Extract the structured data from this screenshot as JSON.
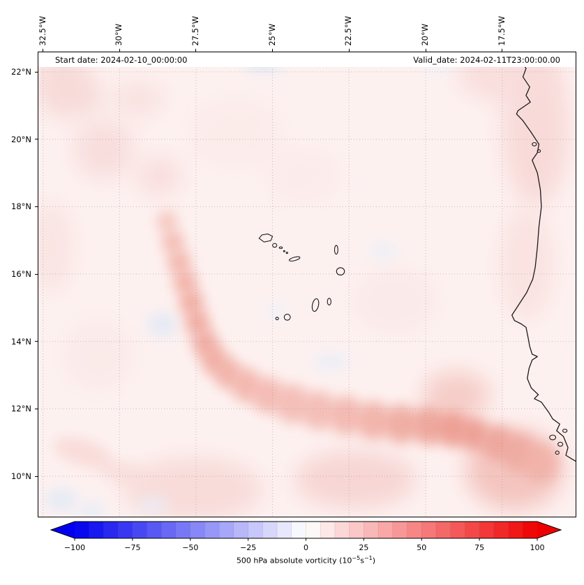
{
  "chart_data": {
    "type": "heatmap",
    "title_left": "Start date: 2024-02-10_00:00:00",
    "title_right": "Valid_date: 2024-02-11T23:00:00.00",
    "geo": {
      "lon_min": -32.65,
      "lon_max": -15.1,
      "lat_min": 8.8,
      "lat_max": 22.58
    },
    "x_axis": {
      "tick_labels": [
        "32.5°W",
        "30°W",
        "27.5°W",
        "25°W",
        "22.5°W",
        "20°W",
        "17.5°W"
      ],
      "tick_lons": [
        -32.5,
        -30,
        -27.5,
        -25,
        -22.5,
        -20,
        -17.5
      ]
    },
    "y_axis": {
      "tick_labels": [
        "22°N",
        "20°N",
        "18°N",
        "16°N",
        "14°N",
        "12°N",
        "10°N"
      ],
      "tick_lats": [
        22,
        20,
        18,
        16,
        14,
        12,
        10
      ]
    },
    "grid": {
      "on": true,
      "style": "dotted",
      "color": "#999999"
    },
    "colorbar": {
      "vmin": -100,
      "vmax": 100,
      "levels": 32,
      "extend": "both",
      "cmap": "bwr",
      "colors": {
        "low": "#0000ee",
        "mid": "#ffffff",
        "high": "#ee0000"
      },
      "tick_values": [
        -100,
        -75,
        -50,
        -25,
        0,
        25,
        50,
        75,
        100
      ],
      "tick_labels": [
        "−100",
        "−75",
        "−50",
        "−25",
        "0",
        "25",
        "50",
        "75",
        "100"
      ],
      "label": {
        "prefix": "500 hPa absolute vorticity (10",
        "sup1": "−5",
        "mid": "s",
        "sup2": "−1",
        "suffix": ")"
      }
    },
    "field": {
      "units": "1e-5 s^-1",
      "base_value": 5,
      "base_color": "#fdf1f0",
      "description": "Weak positive vorticity (pale red) over most of the domain; an elongated band of enhanced vorticity (25-45) arcs from about 28.5W,17.5N southward to 27W,13.5N then eastward along about 11.5N toward the African coast, with a maximum near 19W,11.4N; scattered weak negative (pale blue) patches.",
      "blobs": [
        {
          "x": -31.9,
          "y": 21.9,
          "rx": 0.85,
          "ry": 0.5,
          "c": "#f6d6d4",
          "o": 0.85,
          "b": "b-l"
        },
        {
          "x": -31.6,
          "y": 21.3,
          "rx": 1.1,
          "ry": 0.7,
          "c": "#f6d8d6",
          "o": 0.85,
          "b": "b-l"
        },
        {
          "x": -30.5,
          "y": 19.7,
          "rx": 1.0,
          "ry": 0.9,
          "c": "#f7dbd9",
          "o": 0.85,
          "b": "b-l"
        },
        {
          "x": -28.7,
          "y": 18.9,
          "rx": 0.75,
          "ry": 0.6,
          "c": "#f7dad8",
          "o": 0.8,
          "b": "b-l"
        },
        {
          "x": -32.2,
          "y": 16.8,
          "rx": 0.7,
          "ry": 1.4,
          "c": "#f9e1df",
          "o": 0.8,
          "b": "b-l"
        },
        {
          "x": -29.4,
          "y": 21.2,
          "rx": 0.9,
          "ry": 0.55,
          "c": "#f8dedc",
          "o": 0.8,
          "b": "b-l"
        },
        {
          "x": -26.2,
          "y": 20.2,
          "rx": 1.6,
          "ry": 1.1,
          "c": "#fbe9e8",
          "o": 0.75,
          "b": "b-l"
        },
        {
          "x": -24.0,
          "y": 18.9,
          "rx": 1.3,
          "ry": 0.9,
          "c": "#fbe9e8",
          "o": 0.7,
          "b": "b-l"
        },
        {
          "x": -16.4,
          "y": 20.3,
          "rx": 1.1,
          "ry": 2.3,
          "c": "#f7d8d6",
          "o": 0.9,
          "b": "b-l"
        },
        {
          "x": -17.4,
          "y": 21.9,
          "rx": 1.6,
          "ry": 0.8,
          "c": "#f8dcda",
          "o": 0.85,
          "b": "b-l"
        },
        {
          "x": -16.7,
          "y": 16.3,
          "rx": 0.9,
          "ry": 1.7,
          "c": "#f9e0de",
          "o": 0.85,
          "b": "b-l"
        },
        {
          "x": -21.0,
          "y": 15.2,
          "rx": 1.4,
          "ry": 1.0,
          "c": "#fae7e5",
          "o": 0.7,
          "b": "b-l"
        },
        {
          "x": -19.0,
          "y": 12.4,
          "rx": 1.1,
          "ry": 0.7,
          "c": "#f4c6c0",
          "o": 0.85,
          "b": "b-l"
        },
        {
          "x": -27.6,
          "y": 9.6,
          "rx": 2.3,
          "ry": 0.95,
          "c": "#f7d9d7",
          "o": 0.9,
          "b": "b-l"
        },
        {
          "x": -31.2,
          "y": 10.7,
          "rx": 1.0,
          "ry": 0.4,
          "c": "#f7d7d5",
          "o": 0.8,
          "b": "b-m",
          "rot": 18
        },
        {
          "x": -29.9,
          "y": 10.1,
          "rx": 0.85,
          "ry": 0.33,
          "c": "#f8dcda",
          "o": 0.8,
          "b": "b-m",
          "rot": 15
        },
        {
          "x": -22.3,
          "y": 9.9,
          "rx": 2.0,
          "ry": 0.85,
          "c": "#f6d3d0",
          "o": 0.9,
          "b": "b-l"
        },
        {
          "x": -17.1,
          "y": 10.2,
          "rx": 1.6,
          "ry": 1.2,
          "c": "#f3c0ba",
          "o": 0.9,
          "b": "b-l"
        },
        {
          "x": -30.7,
          "y": 13.6,
          "rx": 1.2,
          "ry": 1.1,
          "c": "#fae8e7",
          "o": 0.75,
          "b": "b-l"
        },
        {
          "x": -28.6,
          "y": 14.5,
          "rx": 0.5,
          "ry": 0.38,
          "c": "#e2e9f6",
          "o": 0.85,
          "b": "b-m"
        },
        {
          "x": -23.1,
          "y": 13.4,
          "rx": 0.6,
          "ry": 0.3,
          "c": "#e8edf7",
          "o": 0.75,
          "b": "b-m"
        },
        {
          "x": -21.4,
          "y": 16.7,
          "rx": 0.5,
          "ry": 0.3,
          "c": "#eaeff8",
          "o": 0.7,
          "b": "b-m"
        },
        {
          "x": -25.3,
          "y": 22.3,
          "rx": 0.6,
          "ry": 0.32,
          "c": "#dfe8f5",
          "o": 0.9,
          "b": "b-m"
        },
        {
          "x": -19.6,
          "y": 22.25,
          "rx": 0.6,
          "ry": 0.3,
          "c": "#eef2fa",
          "o": 0.6,
          "b": "b-m"
        },
        {
          "x": -31.9,
          "y": 9.3,
          "rx": 0.55,
          "ry": 0.35,
          "c": "#e3eaf6",
          "o": 0.85,
          "b": "b-m"
        },
        {
          "x": -30.9,
          "y": 8.95,
          "rx": 0.45,
          "ry": 0.3,
          "c": "#e6ecf7",
          "o": 0.8,
          "b": "b-m"
        },
        {
          "x": -28.9,
          "y": 9.15,
          "rx": 0.5,
          "ry": 0.27,
          "c": "#e9eef8",
          "o": 0.7,
          "b": "b-m"
        },
        {
          "x": -24.9,
          "y": 14.9,
          "rx": 0.4,
          "ry": 0.27,
          "c": "#edf1f9",
          "o": 0.6,
          "b": "b-m"
        }
      ],
      "band": [
        {
          "x": -28.45,
          "y": 17.55,
          "r": 0.33,
          "c": "#f4c0b8"
        },
        {
          "x": -28.25,
          "y": 16.95,
          "r": 0.36,
          "c": "#f2b6ad"
        },
        {
          "x": -28.05,
          "y": 16.35,
          "r": 0.38,
          "c": "#f1b0a6"
        },
        {
          "x": -27.85,
          "y": 15.75,
          "r": 0.38,
          "c": "#f0aba1"
        },
        {
          "x": -27.65,
          "y": 15.15,
          "r": 0.4,
          "c": "#efa79c"
        },
        {
          "x": -27.45,
          "y": 14.55,
          "r": 0.4,
          "c": "#efa59a"
        },
        {
          "x": -27.2,
          "y": 13.95,
          "r": 0.42,
          "c": "#eea49a"
        },
        {
          "x": -26.9,
          "y": 13.45,
          "r": 0.44,
          "c": "#efa89d"
        },
        {
          "x": -26.45,
          "y": 13.05,
          "r": 0.46,
          "c": "#f0ada3"
        },
        {
          "x": -25.85,
          "y": 12.7,
          "r": 0.5,
          "c": "#f1b2a9"
        },
        {
          "x": -25.15,
          "y": 12.4,
          "r": 0.54,
          "c": "#f2b6ae"
        },
        {
          "x": -24.35,
          "y": 12.15,
          "r": 0.58,
          "c": "#f2b8b0"
        },
        {
          "x": -23.5,
          "y": 11.95,
          "r": 0.58,
          "c": "#f2b8b0"
        },
        {
          "x": -22.6,
          "y": 11.8,
          "r": 0.58,
          "c": "#f1b4ab"
        },
        {
          "x": -21.7,
          "y": 11.65,
          "r": 0.58,
          "c": "#f0aea4"
        },
        {
          "x": -20.8,
          "y": 11.55,
          "r": 0.58,
          "c": "#eea69b"
        },
        {
          "x": -19.9,
          "y": 11.5,
          "r": 0.58,
          "c": "#eda095"
        },
        {
          "x": -19.1,
          "y": 11.4,
          "r": 0.55,
          "c": "#ec988c"
        },
        {
          "x": -18.4,
          "y": 11.25,
          "r": 0.5,
          "c": "#ec9a8e"
        },
        {
          "x": -17.65,
          "y": 11.0,
          "r": 0.52,
          "c": "#eda296"
        },
        {
          "x": -16.95,
          "y": 10.7,
          "r": 0.56,
          "c": "#eea99e"
        },
        {
          "x": -16.25,
          "y": 10.4,
          "r": 0.58,
          "c": "#f0b0a7"
        }
      ]
    },
    "map": {
      "coastline": [
        [
          -16.78,
          22.62
        ],
        [
          -16.88,
          22.35
        ],
        [
          -16.72,
          22.1
        ],
        [
          -16.82,
          21.85
        ],
        [
          -16.6,
          21.55
        ],
        [
          -16.72,
          21.3
        ],
        [
          -16.58,
          21.1
        ],
        [
          -16.98,
          20.85
        ],
        [
          -17.03,
          20.75
        ],
        [
          -16.82,
          20.55
        ],
        [
          -16.55,
          20.2
        ],
        [
          -16.3,
          19.85
        ],
        [
          -16.35,
          19.6
        ],
        [
          -16.52,
          19.38
        ],
        [
          -16.35,
          19.0
        ],
        [
          -16.25,
          18.5
        ],
        [
          -16.22,
          18.0
        ],
        [
          -16.3,
          17.4
        ],
        [
          -16.35,
          16.8
        ],
        [
          -16.42,
          16.2
        ],
        [
          -16.5,
          15.85
        ],
        [
          -16.7,
          15.45
        ],
        [
          -16.95,
          15.1
        ],
        [
          -17.18,
          14.78
        ],
        [
          -17.1,
          14.62
        ],
        [
          -16.88,
          14.52
        ],
        [
          -16.72,
          14.42
        ],
        [
          -16.65,
          14.1
        ],
        [
          -16.6,
          13.85
        ],
        [
          -16.52,
          13.62
        ],
        [
          -16.35,
          13.55
        ],
        [
          -16.52,
          13.45
        ],
        [
          -16.62,
          13.2
        ],
        [
          -16.68,
          12.9
        ],
        [
          -16.55,
          12.62
        ],
        [
          -16.32,
          12.42
        ],
        [
          -16.45,
          12.3
        ],
        [
          -16.22,
          12.2
        ],
        [
          -15.98,
          11.9
        ],
        [
          -15.85,
          11.7
        ],
        [
          -15.62,
          11.55
        ],
        [
          -15.72,
          11.35
        ],
        [
          -15.5,
          11.18
        ],
        [
          -15.35,
          10.85
        ],
        [
          -15.42,
          10.62
        ],
        [
          -15.2,
          10.5
        ],
        [
          -15.05,
          10.42
        ]
      ],
      "cape_verde_islands": [
        {
          "name": "santo-antao",
          "pts": [
            [
              -25.44,
              17.06
            ],
            [
              -25.35,
              17.16
            ],
            [
              -25.16,
              17.19
            ],
            [
              -25.0,
              17.12
            ],
            [
              -25.06,
              16.99
            ],
            [
              -25.28,
              16.95
            ]
          ]
        },
        {
          "name": "sao-vicente",
          "x": -24.93,
          "y": 16.85,
          "rx": 0.07,
          "ry": 0.055
        },
        {
          "name": "santa-luzia",
          "x": -24.73,
          "y": 16.78,
          "rx": 0.05,
          "ry": 0.025
        },
        {
          "name": "branco",
          "x": -24.62,
          "y": 16.68,
          "rx": 0.022,
          "ry": 0.018
        },
        {
          "name": "raso",
          "x": -24.53,
          "y": 16.63,
          "rx": 0.025,
          "ry": 0.02
        },
        {
          "name": "sao-nicolau",
          "x": -24.28,
          "y": 16.45,
          "rx": 0.18,
          "ry": 0.05,
          "rot": -15
        },
        {
          "name": "sal",
          "x": -22.92,
          "y": 16.72,
          "rx": 0.055,
          "ry": 0.13
        },
        {
          "name": "boa-vista",
          "x": -22.78,
          "y": 16.08,
          "rx": 0.13,
          "ry": 0.11
        },
        {
          "name": "maio",
          "x": -23.15,
          "y": 15.18,
          "rx": 0.06,
          "ry": 0.1
        },
        {
          "name": "santiago",
          "x": -23.6,
          "y": 15.08,
          "rx": 0.1,
          "ry": 0.19,
          "rot": 12
        },
        {
          "name": "fogo",
          "x": -24.52,
          "y": 14.72,
          "rx": 0.1,
          "ry": 0.09
        },
        {
          "name": "brava",
          "x": -24.85,
          "y": 14.68,
          "rx": 0.045,
          "ry": 0.04
        }
      ],
      "coastal_islands": [
        {
          "name": "arguin-1",
          "x": -16.45,
          "y": 19.85,
          "rx": 0.07,
          "ry": 0.05
        },
        {
          "name": "arguin-2",
          "x": -16.3,
          "y": 19.65,
          "rx": 0.05,
          "ry": 0.04
        },
        {
          "name": "bijagos-1",
          "x": -15.85,
          "y": 11.15,
          "rx": 0.1,
          "ry": 0.07
        },
        {
          "name": "bijagos-2",
          "x": -15.6,
          "y": 10.95,
          "rx": 0.08,
          "ry": 0.06
        },
        {
          "name": "bijagos-3",
          "x": -15.45,
          "y": 11.35,
          "rx": 0.07,
          "ry": 0.05
        },
        {
          "name": "bijagos-4",
          "x": -15.7,
          "y": 10.7,
          "rx": 0.06,
          "ry": 0.05
        }
      ]
    }
  }
}
